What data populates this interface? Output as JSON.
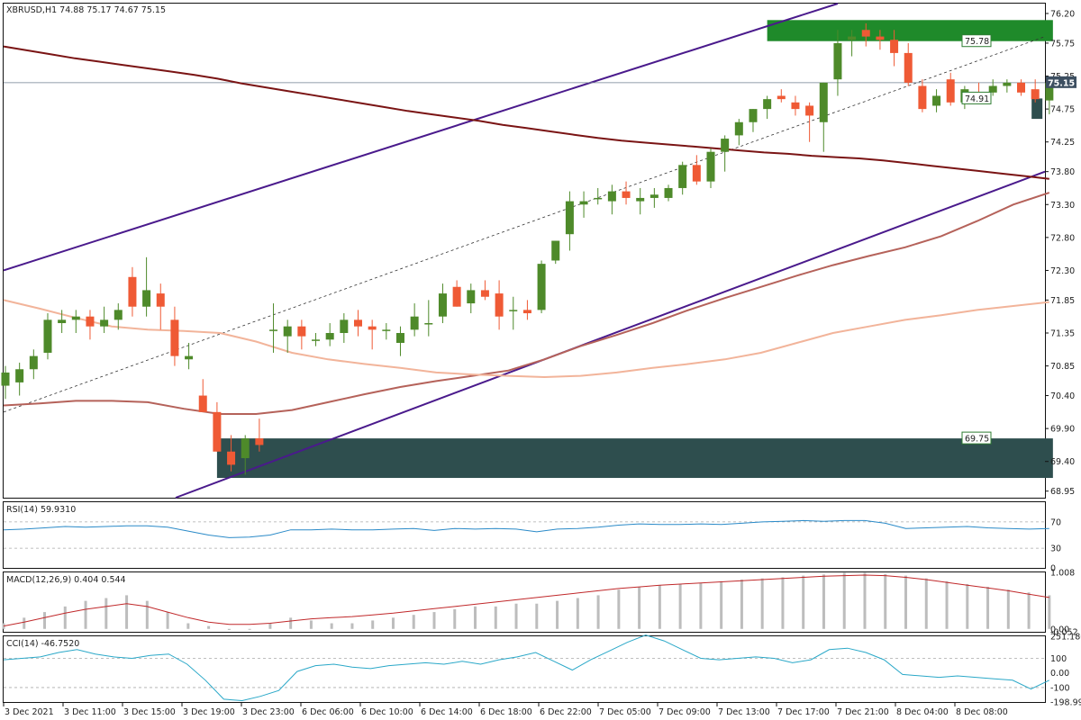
{
  "chart_data": {
    "type": "candlestick",
    "symbol_header": "XBRUSD,H1  74.88 75.17 74.67 75.15",
    "colors": {
      "bull": "#4e8a2a",
      "bear": "#ef5a35",
      "channel": "#4a1a8c",
      "ma_slow": "#7a1414",
      "ma_mid": "#b5625a",
      "ma_fast": "#f2b49a",
      "zone": "#2e4e4e",
      "zone_top": "#1f8a2a",
      "rsi": "#2a8ac8",
      "macd_hist": "#bdbdbd",
      "macd_signal": "#c0282a",
      "cci": "#2aa8c8"
    },
    "price_axis": {
      "min": 68.85,
      "max": 76.35,
      "ticks": [
        "76.20",
        "75.75",
        "75.25",
        "74.75",
        "74.25",
        "73.80",
        "73.30",
        "72.80",
        "72.30",
        "71.85",
        "71.35",
        "70.85",
        "70.40",
        "69.90",
        "69.40",
        "68.95"
      ]
    },
    "current_price": "75.15",
    "levels": [
      {
        "label": "75.78",
        "value": 75.78
      },
      {
        "label": "74.91",
        "value": 74.91
      },
      {
        "label": "69.75",
        "value": 69.75
      }
    ],
    "candles": [
      [
        70.55,
        70.85,
        70.35,
        70.75
      ],
      [
        70.6,
        70.9,
        70.4,
        70.8
      ],
      [
        70.8,
        71.1,
        70.65,
        71.0
      ],
      [
        71.05,
        71.65,
        70.95,
        71.55
      ],
      [
        71.5,
        71.7,
        71.35,
        71.55
      ],
      [
        71.55,
        71.7,
        71.35,
        71.6
      ],
      [
        71.6,
        71.7,
        71.25,
        71.45
      ],
      [
        71.45,
        71.75,
        71.35,
        71.55
      ],
      [
        71.55,
        71.8,
        71.4,
        71.7
      ],
      [
        72.2,
        72.35,
        71.6,
        71.75
      ],
      [
        71.75,
        72.5,
        71.6,
        72.0
      ],
      [
        71.95,
        72.1,
        71.4,
        71.75
      ],
      [
        71.55,
        71.75,
        70.85,
        71.0
      ],
      [
        70.95,
        71.2,
        70.8,
        71.0
      ],
      [
        70.4,
        70.65,
        70.15,
        70.15
      ],
      [
        70.15,
        70.3,
        69.55,
        69.55
      ],
      [
        69.55,
        69.8,
        69.25,
        69.35
      ],
      [
        69.45,
        69.8,
        69.2,
        69.75
      ],
      [
        69.75,
        70.05,
        69.55,
        69.65
      ],
      [
        71.4,
        71.8,
        71.05,
        71.4
      ],
      [
        71.3,
        71.55,
        71.05,
        71.45
      ],
      [
        71.45,
        71.55,
        71.1,
        71.3
      ],
      [
        71.25,
        71.35,
        71.15,
        71.25
      ],
      [
        71.25,
        71.5,
        71.15,
        71.35
      ],
      [
        71.35,
        71.65,
        71.2,
        71.55
      ],
      [
        71.55,
        71.7,
        71.3,
        71.45
      ],
      [
        71.45,
        71.55,
        71.1,
        71.4
      ],
      [
        71.4,
        71.5,
        71.25,
        71.4
      ],
      [
        71.2,
        71.45,
        71.0,
        71.35
      ],
      [
        71.4,
        71.8,
        71.3,
        71.6
      ],
      [
        71.5,
        71.85,
        71.3,
        71.5
      ],
      [
        71.6,
        72.1,
        71.5,
        71.95
      ],
      [
        72.05,
        72.15,
        71.75,
        71.75
      ],
      [
        71.8,
        72.1,
        71.65,
        72.0
      ],
      [
        72.0,
        72.15,
        71.85,
        71.9
      ],
      [
        71.95,
        72.15,
        71.4,
        71.6
      ],
      [
        71.7,
        71.9,
        71.4,
        71.7
      ],
      [
        71.7,
        71.85,
        71.55,
        71.65
      ],
      [
        71.7,
        72.45,
        71.65,
        72.4
      ],
      [
        72.45,
        72.75,
        72.4,
        72.75
      ],
      [
        72.85,
        73.5,
        72.6,
        73.35
      ],
      [
        73.3,
        73.5,
        73.1,
        73.35
      ],
      [
        73.4,
        73.55,
        73.3,
        73.4
      ],
      [
        73.35,
        73.6,
        73.15,
        73.5
      ],
      [
        73.5,
        73.65,
        73.3,
        73.4
      ],
      [
        73.35,
        73.55,
        73.15,
        73.4
      ],
      [
        73.4,
        73.55,
        73.25,
        73.45
      ],
      [
        73.4,
        73.6,
        73.35,
        73.55
      ],
      [
        73.55,
        73.95,
        73.45,
        73.9
      ],
      [
        73.9,
        74.05,
        73.6,
        73.65
      ],
      [
        73.65,
        74.15,
        73.55,
        74.1
      ],
      [
        74.1,
        74.35,
        73.8,
        74.3
      ],
      [
        74.35,
        74.6,
        74.2,
        74.55
      ],
      [
        74.55,
        74.75,
        74.4,
        74.75
      ],
      [
        74.75,
        74.95,
        74.6,
        74.9
      ],
      [
        74.95,
        75.05,
        74.85,
        74.9
      ],
      [
        74.85,
        74.95,
        74.65,
        74.75
      ],
      [
        74.8,
        74.85,
        74.25,
        74.65
      ],
      [
        74.55,
        75.15,
        74.1,
        75.15
      ],
      [
        75.2,
        75.95,
        74.95,
        75.75
      ],
      [
        75.8,
        75.95,
        75.55,
        75.85
      ],
      [
        75.95,
        76.05,
        75.7,
        75.85
      ],
      [
        75.85,
        75.95,
        75.65,
        75.8
      ],
      [
        75.8,
        75.95,
        75.4,
        75.6
      ],
      [
        75.6,
        75.75,
        75.1,
        75.15
      ],
      [
        75.1,
        75.2,
        74.7,
        74.75
      ],
      [
        74.8,
        75.05,
        74.7,
        74.95
      ],
      [
        75.2,
        75.3,
        74.8,
        74.85
      ],
      [
        74.85,
        75.1,
        74.75,
        75.05
      ],
      [
        75.0,
        75.15,
        74.9,
        74.95
      ],
      [
        75.0,
        75.2,
        74.95,
        75.1
      ],
      [
        75.1,
        75.2,
        75.0,
        75.15
      ],
      [
        75.15,
        75.2,
        74.95,
        75.0
      ],
      [
        75.05,
        75.2,
        74.85,
        74.9
      ],
      [
        74.88,
        75.17,
        74.67,
        75.15
      ]
    ],
    "ma_slow": [
      75.7,
      75.64,
      75.58,
      75.52,
      75.47,
      75.42,
      75.37,
      75.32,
      75.27,
      75.21,
      75.14,
      75.08,
      75.02,
      74.96,
      74.9,
      74.84,
      74.78,
      74.72,
      74.67,
      74.62,
      74.57,
      74.51,
      74.46,
      74.41,
      74.36,
      74.31,
      74.27,
      74.24,
      74.21,
      74.18,
      74.15,
      74.12,
      74.09,
      74.07,
      74.04,
      74.02,
      74.0,
      73.97,
      73.93,
      73.89,
      73.85,
      73.81,
      73.77,
      73.73,
      73.69
    ],
    "ma_mid": [
      70.25,
      70.28,
      70.32,
      70.32,
      70.3,
      70.2,
      70.12,
      70.12,
      70.18,
      70.3,
      70.42,
      70.53,
      70.62,
      70.7,
      70.78,
      70.95,
      71.15,
      71.32,
      71.5,
      71.7,
      71.88,
      72.05,
      72.22,
      72.38,
      72.52,
      72.65,
      72.82,
      73.05,
      73.3,
      73.48
    ],
    "ma_fast": [
      71.85,
      71.72,
      71.58,
      71.45,
      71.4,
      71.38,
      71.35,
      71.22,
      71.05,
      70.95,
      70.88,
      70.82,
      70.75,
      70.72,
      70.7,
      70.68,
      70.7,
      70.75,
      70.82,
      70.88,
      70.95,
      71.05,
      71.2,
      71.35,
      71.45,
      71.55,
      71.62,
      71.7,
      71.76,
      71.82
    ],
    "x_axis": [
      "3 Dec 2021",
      "3 Dec 11:00",
      "3 Dec 15:00",
      "3 Dec 19:00",
      "3 Dec 23:00",
      "6 Dec 06:00",
      "6 Dec 10:00",
      "6 Dec 14:00",
      "6 Dec 18:00",
      "6 Dec 22:00",
      "7 Dec 05:00",
      "7 Dec 09:00",
      "7 Dec 13:00",
      "7 Dec 17:00",
      "7 Dec 21:00",
      "8 Dec 04:00",
      "8 Dec 08:00"
    ],
    "rsi": {
      "label": "RSI(14) 59.9310",
      "ticks": [
        "70",
        "30",
        "0"
      ],
      "values": [
        58,
        59,
        61,
        63,
        62,
        63,
        64,
        64,
        62,
        56,
        50,
        46,
        47,
        50,
        58,
        58,
        59,
        58,
        58,
        59,
        60,
        57,
        60,
        59,
        60,
        59,
        55,
        59,
        60,
        62,
        65,
        67,
        66,
        66,
        67,
        66,
        68,
        70,
        71,
        72,
        71,
        72,
        72,
        68,
        60,
        61,
        62,
        63,
        61,
        60,
        59,
        60
      ]
    },
    "macd": {
      "label": "MACD(12,26,9) 0.404 0.544",
      "ticks": [
        "1.008",
        "0.00",
        "-0.052"
      ],
      "hist": [
        0.1,
        0.2,
        0.3,
        0.4,
        0.5,
        0.55,
        0.6,
        0.5,
        0.3,
        0.1,
        0.05,
        -0.02,
        0.0,
        0.1,
        0.2,
        0.15,
        0.1,
        0.1,
        0.15,
        0.2,
        0.25,
        0.3,
        0.35,
        0.4,
        0.4,
        0.45,
        0.45,
        0.5,
        0.55,
        0.6,
        0.7,
        0.75,
        0.78,
        0.8,
        0.82,
        0.85,
        0.88,
        0.9,
        0.92,
        0.95,
        0.97,
        1.0,
        1.0,
        0.98,
        0.95,
        0.9,
        0.85,
        0.8,
        0.75,
        0.7,
        0.65,
        0.6
      ],
      "signal": [
        0.05,
        0.12,
        0.2,
        0.28,
        0.35,
        0.4,
        0.45,
        0.4,
        0.3,
        0.2,
        0.12,
        0.08,
        0.08,
        0.1,
        0.14,
        0.18,
        0.2,
        0.22,
        0.25,
        0.28,
        0.32,
        0.36,
        0.4,
        0.44,
        0.48,
        0.52,
        0.56,
        0.6,
        0.64,
        0.68,
        0.72,
        0.75,
        0.78,
        0.8,
        0.82,
        0.84,
        0.86,
        0.88,
        0.9,
        0.92,
        0.94,
        0.95,
        0.96,
        0.95,
        0.92,
        0.88,
        0.83,
        0.78,
        0.73,
        0.68,
        0.62,
        0.56
      ]
    },
    "cci": {
      "label": "CCI(14) -46.7520",
      "ticks": [
        "251.1805",
        "100",
        "0.00",
        "-100",
        "-198.996"
      ],
      "values": [
        90,
        100,
        110,
        140,
        160,
        130,
        110,
        100,
        120,
        130,
        60,
        -50,
        -180,
        -190,
        -160,
        -120,
        10,
        50,
        60,
        40,
        30,
        50,
        60,
        70,
        60,
        80,
        60,
        90,
        110,
        140,
        80,
        20,
        90,
        150,
        210,
        260,
        220,
        160,
        100,
        90,
        100,
        110,
        100,
        70,
        90,
        160,
        170,
        140,
        90,
        -10,
        -20,
        -30,
        -20,
        -30,
        -40,
        -50,
        -110,
        -50
      ]
    }
  }
}
